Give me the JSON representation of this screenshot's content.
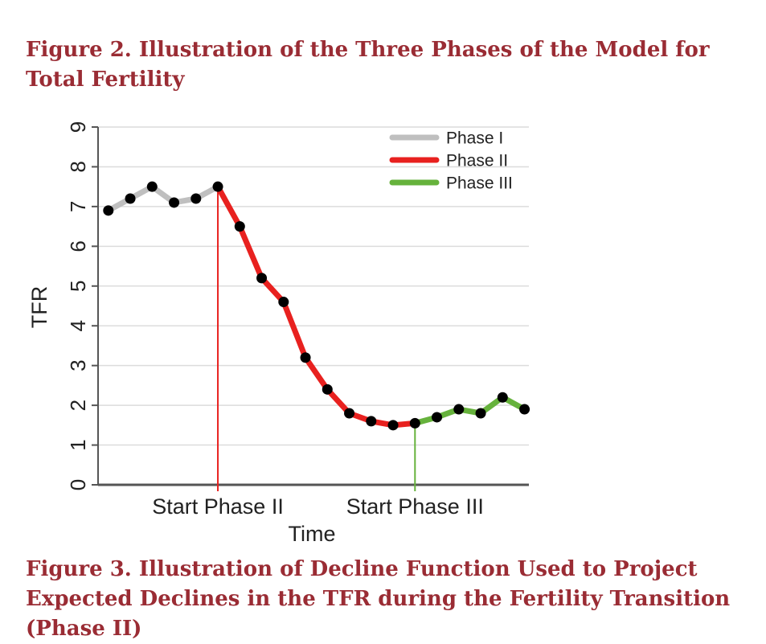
{
  "figure2_caption": "Figure 2. Illustration of the Three Phases of the Model for Total Fertility",
  "figure3_caption": "Figure 3. Illustration of Decline Function Used to Project Expected Declines in the TFR during the Fertility Transition (Phase II)",
  "chart_data": {
    "type": "line",
    "xlabel": "Time",
    "ylabel": "TFR",
    "ylim": [
      0,
      9
    ],
    "yticks": [
      0,
      1,
      2,
      3,
      4,
      5,
      6,
      7,
      8,
      9
    ],
    "grid": "horizontal",
    "legend_position": "top-right",
    "x_markers": [
      {
        "label": "Start Phase II",
        "x": 6,
        "color": "#e8211f"
      },
      {
        "label": "Start Phase III",
        "x": 15,
        "color": "#66b23c"
      }
    ],
    "series": [
      {
        "name": "Phase I",
        "color": "#bfbfbf",
        "x": [
          1,
          2,
          3,
          4,
          5,
          6
        ],
        "y": [
          6.9,
          7.2,
          7.5,
          7.1,
          7.2,
          7.5
        ]
      },
      {
        "name": "Phase II",
        "color": "#e8211f",
        "x": [
          6,
          7,
          8,
          9,
          10,
          11,
          12,
          13,
          14,
          15
        ],
        "y": [
          7.5,
          6.5,
          5.2,
          4.6,
          3.2,
          2.4,
          1.8,
          1.6,
          1.5,
          1.55
        ]
      },
      {
        "name": "Phase III",
        "color": "#66b23c",
        "x": [
          15,
          16,
          17,
          18,
          19,
          20
        ],
        "y": [
          1.55,
          1.7,
          1.9,
          1.8,
          2.2,
          1.9
        ]
      }
    ],
    "point_color": "#000000"
  }
}
